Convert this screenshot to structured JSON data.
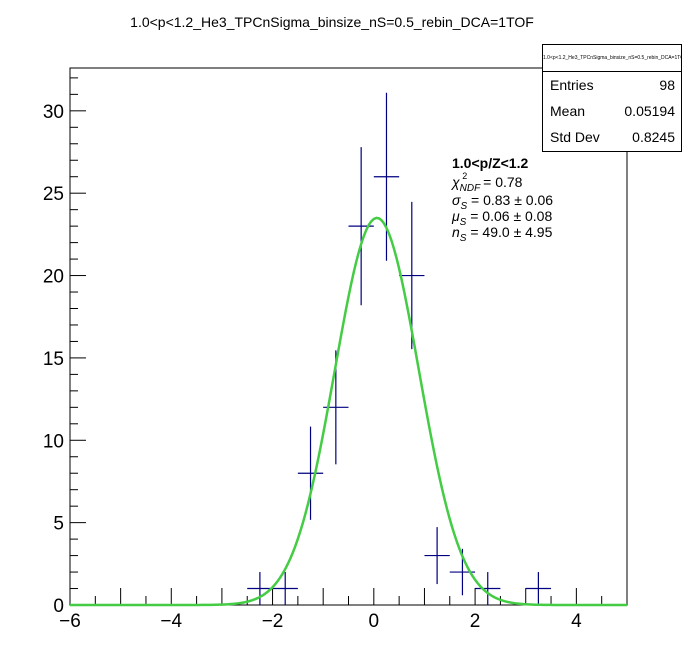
{
  "title": "1.0<p<1.2_He3_TPCnSigma_binsize_nS=0.5_rebin_DCA=1TOF",
  "stats": {
    "name": "1.0<p<1.2_He3_TPCnSigma_binsize_nS=0.5_rebin_DCA=1TOF",
    "entries_label": "Entries",
    "entries": "98",
    "mean_label": "Mean",
    "mean": "0.05194",
    "std_label": "Std Dev",
    "std": "0.8245"
  },
  "fit_text": {
    "header": "1.0<p/Z<1.2",
    "chi2": "= 0.78",
    "sigma": "= 0.83 ± 0.06",
    "mu": "= 0.06 ± 0.08",
    "n": "= 49.0 ± 4.95"
  },
  "colors": {
    "hist": "#000080",
    "fit": "#44cc44",
    "axis": "#000000"
  },
  "chart_data": {
    "type": "scatter",
    "title": "1.0<p<1.2_He3_TPCnSigma_binsize_nS=0.5_rebin_DCA=1TOF",
    "xlabel": "",
    "ylabel": "",
    "xlim": [
      -6,
      5
    ],
    "ylim": [
      0,
      32.6
    ],
    "xticks": [
      -6,
      -4,
      -2,
      0,
      2,
      4
    ],
    "yticks": [
      0,
      5,
      10,
      15,
      20,
      25,
      30
    ],
    "bin_width": 0.5,
    "series": [
      {
        "x": [
          -2.25,
          -1.75,
          -1.25,
          -0.75,
          -0.25,
          0.25,
          0.75,
          1.25,
          1.75,
          2.25,
          3.25
        ],
        "y": [
          1,
          1,
          8,
          12,
          23,
          26,
          20,
          3,
          2,
          1,
          1
        ],
        "err": [
          1,
          1,
          2.83,
          3.46,
          4.8,
          5.1,
          4.47,
          1.73,
          1.41,
          1,
          1
        ]
      },
      {
        "type": "gaussian",
        "amplitude": 23.5,
        "mean": 0.06,
        "sigma": 0.83
      }
    ]
  }
}
